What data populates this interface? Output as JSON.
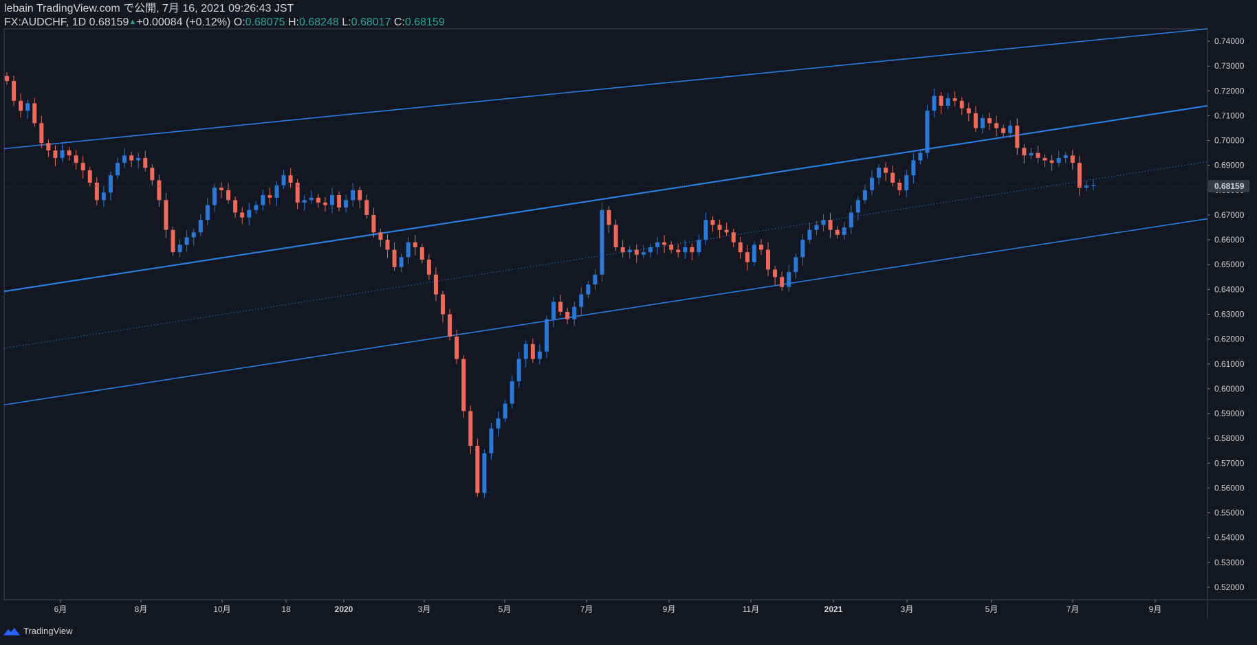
{
  "header": {
    "line1": "lebain TradingView.com で公開, 7月 16, 2021 09:26:43 JST",
    "symbol": "FX:AUDCHF, 1D",
    "last": "0.68159",
    "change": "+0.00084 (+0.12%)",
    "o_label": "O:",
    "o": "0.68075",
    "h_label": "H:",
    "h": "0.68248",
    "l_label": "L:",
    "l": "0.68017",
    "c_label": "C:",
    "c": "0.68159"
  },
  "footer": {
    "brand": "TradingView"
  },
  "colors": {
    "background": "#131722",
    "up": "#2a78d8",
    "down": "#ef6a5a",
    "channel": "#2a7ee0",
    "axis_text": "#d1d4dc",
    "price_badge": "#363a45"
  },
  "chart_data": {
    "type": "candlestick",
    "symbol": "FX:AUDCHF",
    "interval": "1D",
    "ylim": [
      0.515,
      0.745
    ],
    "y_ticks": [
      "0.52000",
      "0.53000",
      "0.54000",
      "0.55000",
      "0.56000",
      "0.57000",
      "0.58000",
      "0.59000",
      "0.60000",
      "0.61000",
      "0.62000",
      "0.63000",
      "0.64000",
      "0.65000",
      "0.66000",
      "0.67000",
      "0.68000",
      "0.69000",
      "0.70000",
      "0.71000",
      "0.72000",
      "0.73000",
      "0.74000"
    ],
    "x_labels": [
      "6月",
      "8月",
      "10月",
      "18",
      "2020",
      "3月",
      "5月",
      "7月",
      "9月",
      "11月",
      "2021",
      "3月",
      "5月",
      "7月",
      "9月"
    ],
    "x_range": [
      "2019-04",
      "2021-10"
    ],
    "last_price": "0.68159",
    "series_close": [
      0.724,
      0.716,
      0.712,
      0.715,
      0.707,
      0.699,
      0.696,
      0.693,
      0.696,
      0.694,
      0.691,
      0.688,
      0.683,
      0.676,
      0.679,
      0.686,
      0.691,
      0.694,
      0.692,
      0.693,
      0.689,
      0.684,
      0.676,
      0.664,
      0.655,
      0.658,
      0.661,
      0.663,
      0.668,
      0.674,
      0.681,
      0.68,
      0.676,
      0.671,
      0.669,
      0.672,
      0.674,
      0.678,
      0.677,
      0.682,
      0.686,
      0.683,
      0.675,
      0.676,
      0.677,
      0.675,
      0.674,
      0.678,
      0.673,
      0.676,
      0.68,
      0.676,
      0.67,
      0.663,
      0.66,
      0.656,
      0.649,
      0.653,
      0.659,
      0.657,
      0.652,
      0.646,
      0.638,
      0.63,
      0.621,
      0.612,
      0.591,
      0.577,
      0.558,
      0.574,
      0.584,
      0.588,
      0.594,
      0.603,
      0.612,
      0.618,
      0.612,
      0.615,
      0.628,
      0.635,
      0.631,
      0.628,
      0.633,
      0.638,
      0.642,
      0.646,
      0.672,
      0.666,
      0.657,
      0.655,
      0.656,
      0.654,
      0.655,
      0.657,
      0.659,
      0.658,
      0.656,
      0.655,
      0.657,
      0.655,
      0.66,
      0.668,
      0.666,
      0.664,
      0.663,
      0.659,
      0.655,
      0.651,
      0.658,
      0.656,
      0.648,
      0.645,
      0.641,
      0.647,
      0.653,
      0.66,
      0.664,
      0.666,
      0.668,
      0.664,
      0.662,
      0.665,
      0.671,
      0.676,
      0.68,
      0.685,
      0.689,
      0.687,
      0.683,
      0.68,
      0.686,
      0.692,
      0.695,
      0.712,
      0.718,
      0.714,
      0.717,
      0.716,
      0.713,
      0.711,
      0.705,
      0.709,
      0.707,
      0.705,
      0.703,
      0.706,
      0.697,
      0.694,
      0.695,
      0.693,
      0.692,
      0.691,
      0.693,
      0.694,
      0.691,
      0.681,
      0.682,
      0.682
    ],
    "channel_lines": [
      {
        "name": "upper",
        "points": [
          [
            "2019-04",
            0.6967
          ],
          [
            "2021-10",
            0.745
          ]
        ]
      },
      {
        "name": "middle",
        "points": [
          [
            "2019-04",
            0.6392
          ],
          [
            "2021-10",
            0.714
          ]
        ]
      },
      {
        "name": "median-dotted",
        "points": [
          [
            "2019-04",
            0.6163
          ],
          [
            "2021-10",
            0.6915
          ]
        ]
      },
      {
        "name": "lower",
        "points": [
          [
            "2019-04",
            0.5935
          ],
          [
            "2021-10",
            0.6685
          ]
        ]
      }
    ]
  }
}
